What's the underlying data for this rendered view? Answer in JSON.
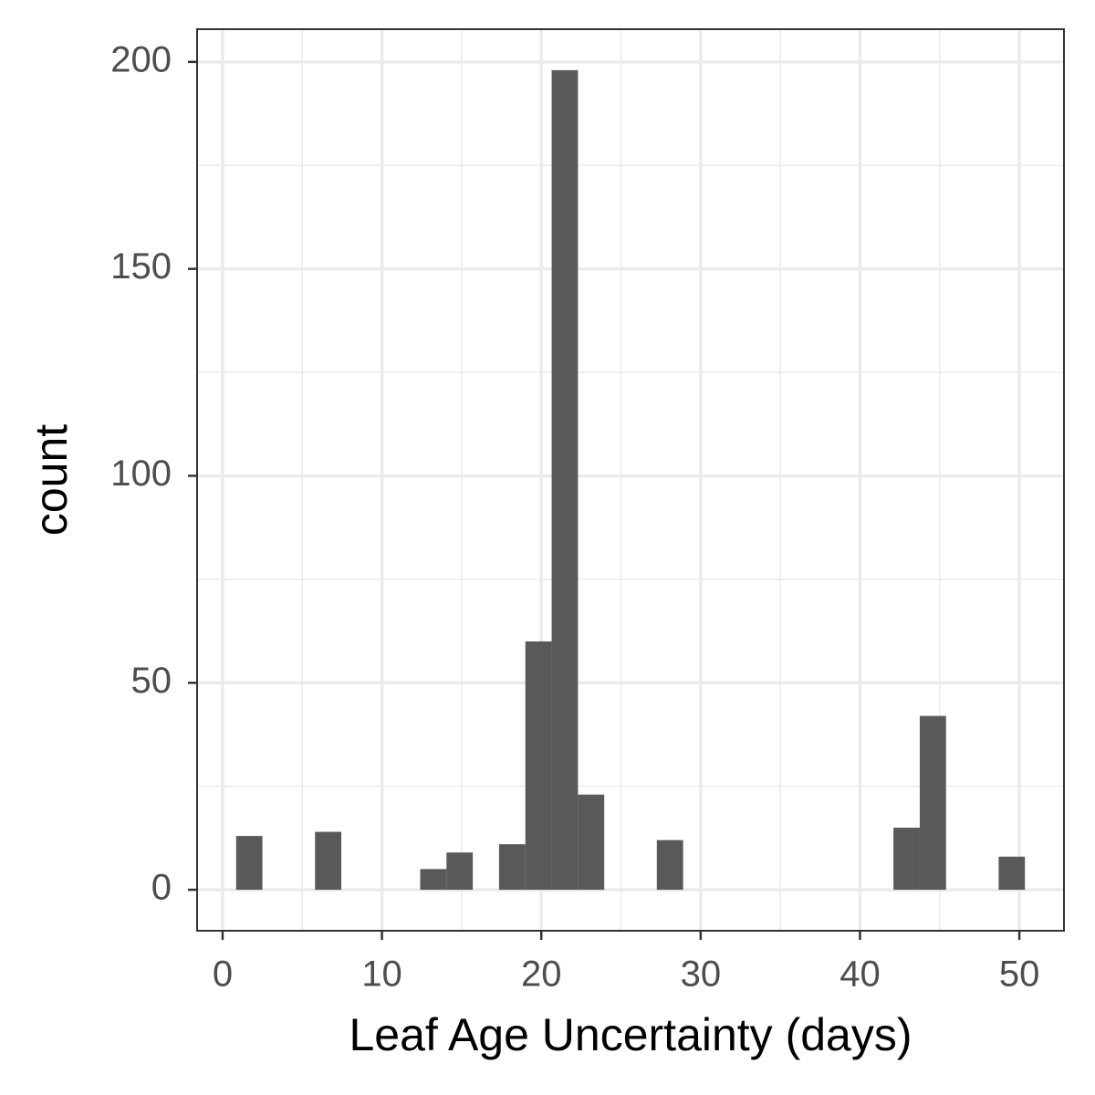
{
  "chart_data": {
    "type": "histogram",
    "x_label": "Leaf Age Uncertainty (days)",
    "y_label": "count",
    "bins": [
      0.85,
      2.5,
      4.15,
      5.8,
      7.45,
      9.1,
      10.75,
      12.4,
      14.05,
      15.7,
      17.35,
      19,
      20.65,
      22.3,
      23.95,
      25.6,
      27.25,
      28.9,
      30.55,
      32.2,
      33.85,
      35.5,
      37.15,
      38.8,
      40.45,
      42.1,
      43.75,
      45.4,
      47.05,
      48.7,
      50.35
    ],
    "counts": [
      13,
      0,
      0,
      14,
      0,
      0,
      0,
      5,
      9,
      0,
      11,
      60,
      198,
      23,
      0,
      0,
      12,
      0,
      0,
      0,
      0,
      0,
      0,
      0,
      0,
      15,
      42,
      0,
      0,
      8
    ],
    "color": "#595959",
    "xlim": [
      -1.6,
      52.8
    ],
    "ylim": [
      -9.9,
      207.9
    ],
    "xticks": [
      0,
      10,
      20,
      30,
      40,
      50
    ],
    "yticks": [
      0,
      50,
      100,
      150,
      200
    ],
    "x_minor_ticks": [
      5,
      15,
      25,
      35,
      45
    ],
    "y_minor_ticks": [
      25,
      75,
      125,
      175
    ],
    "grid": true
  }
}
